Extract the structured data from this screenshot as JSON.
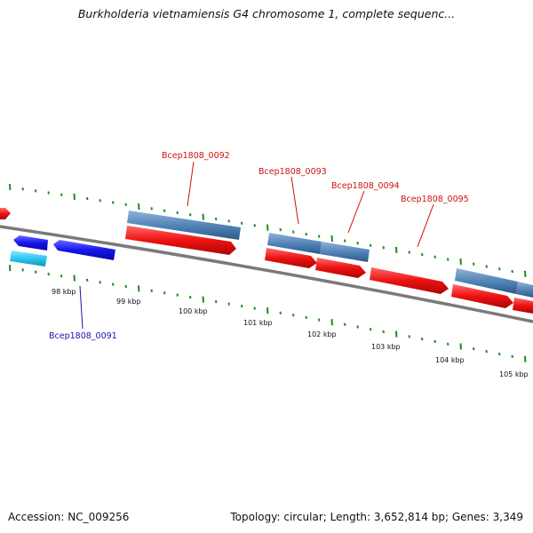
{
  "title": "Burkholderia vietnamiensis G4 chromosome 1, complete sequenc...",
  "footer": {
    "accession": "Accession: NC_009256",
    "summary": "Topology: circular; Length: 3,652,814 bp; Genes: 3,349"
  },
  "colors": {
    "backbone": "#7a7a7a",
    "tick": "#1e8a1e",
    "forward_cds_label": "#cc1111",
    "reverse_cds_label": "#1515aa",
    "cds_forward": "#ee1111",
    "cds_reverse": "#1515ee",
    "gene_forward": "#4a7cb0",
    "gene_reverse": "#2ac8f0"
  },
  "scale_labels": [
    "98 kbp",
    "99 kbp",
    "100 kbp",
    "101 kbp",
    "102 kbp",
    "103 kbp",
    "104 kbp",
    "105 kbp"
  ],
  "features": [
    {
      "name": "Bcep1808_0091",
      "strand": "reverse"
    },
    {
      "name": "Bcep1808_0092",
      "strand": "forward"
    },
    {
      "name": "Bcep1808_0093",
      "strand": "forward"
    },
    {
      "name": "Bcep1808_0094",
      "strand": "forward"
    },
    {
      "name": "Bcep1808_0095",
      "strand": "forward"
    }
  ]
}
